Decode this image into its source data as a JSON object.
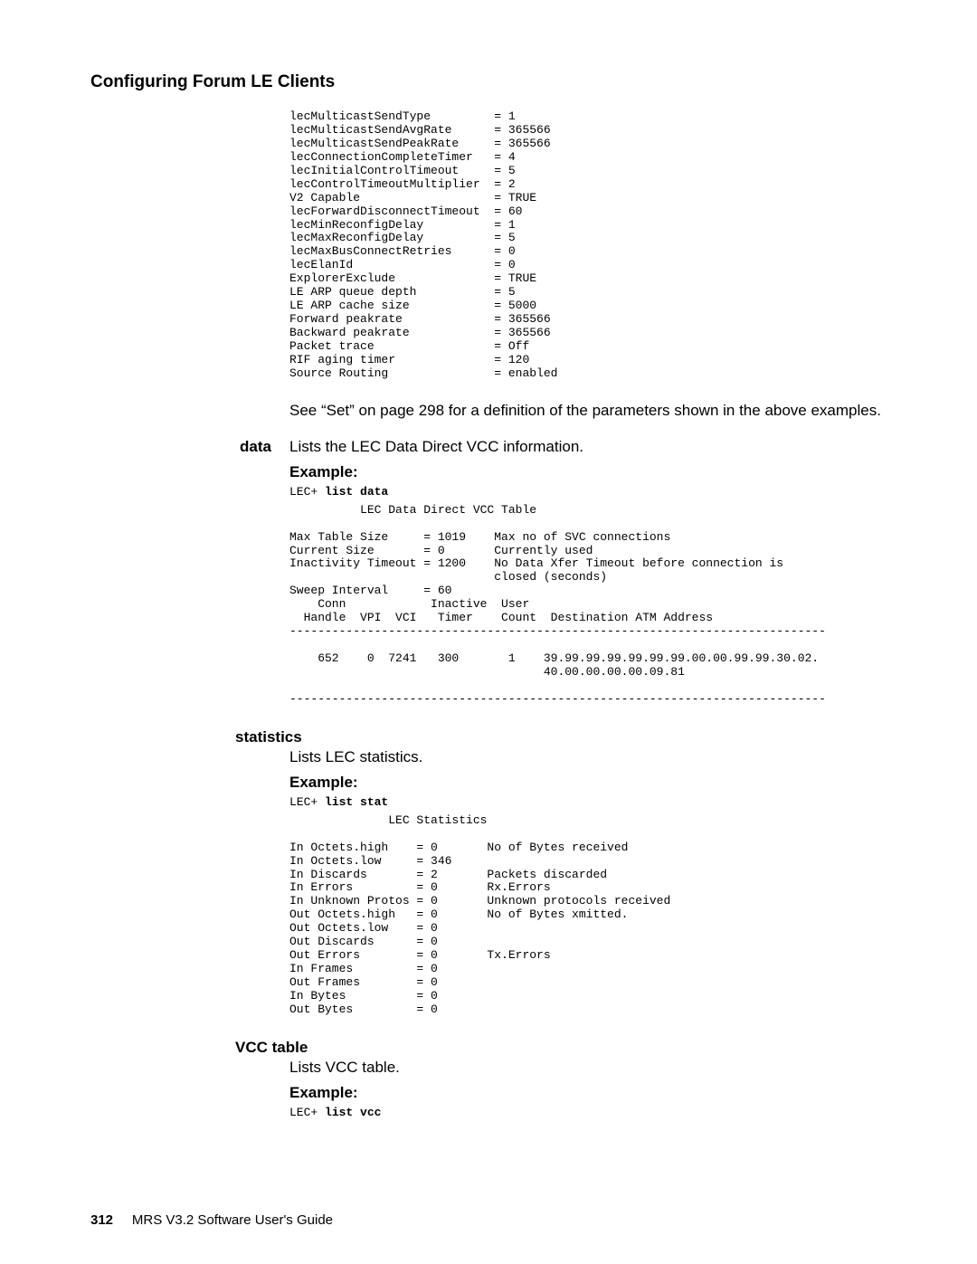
{
  "page": {
    "title": "Configuring Forum LE Clients",
    "page_number": "312",
    "footer_text": "MRS V3.2 Software User's Guide"
  },
  "config_block": "lecMulticastSendType         = 1\nlecMulticastSendAvgRate      = 365566\nlecMulticastSendPeakRate     = 365566\nlecConnectionCompleteTimer   = 4\nlecInitialControlTimeout     = 5\nlecControlTimeoutMultiplier  = 2\nV2 Capable                   = TRUE\nlecForwardDisconnectTimeout  = 60\nlecMinReconfigDelay          = 1\nlecMaxReconfigDelay          = 5\nlecMaxBusConnectRetries      = 0\nlecElanId                    = 0\nExplorerExclude              = TRUE\nLE ARP queue depth           = 5\nLE ARP cache size            = 5000\nForward peakrate             = 365566\nBackward peakrate            = 365566\nPacket trace                 = Off\nRIF aging timer              = 120\nSource Routing               = enabled",
  "see_text": "See “Set” on page 298 for a definition of the parameters shown in the above examples.",
  "data": {
    "term": "data",
    "desc": "Lists the LEC Data Direct VCC information.",
    "example_label": "Example:",
    "prompt": "LEC+ ",
    "cmd": "list data",
    "output": "          LEC Data Direct VCC Table\n\nMax Table Size     = 1019    Max no of SVC connections\nCurrent Size       = 0       Currently used\nInactivity Timeout = 1200    No Data Xfer Timeout before connection is\n                             closed (seconds)\nSweep Interval     = 60\n    Conn            Inactive  User\n  Handle  VPI  VCI   Timer    Count  Destination ATM Address\n----------------------------------------------------------------------------\n\n    652    0  7241   300       1    39.99.99.99.99.99.99.00.00.99.99.30.02.\n                                    40.00.00.00.00.09.81\n\n----------------------------------------------------------------------------"
  },
  "statistics": {
    "head": "statistics",
    "desc": "Lists LEC statistics.",
    "example_label": "Example:",
    "prompt": "LEC+ ",
    "cmd": "list stat",
    "output": "              LEC Statistics\n\nIn Octets.high    = 0       No of Bytes received\nIn Octets.low     = 346\nIn Discards       = 2       Packets discarded\nIn Errors         = 0       Rx.Errors\nIn Unknown Protos = 0       Unknown protocols received\nOut Octets.high   = 0       No of Bytes xmitted.\nOut Octets.low    = 0\nOut Discards      = 0\nOut Errors        = 0       Tx.Errors\nIn Frames         = 0\nOut Frames        = 0\nIn Bytes          = 0\nOut Bytes         = 0"
  },
  "vcctable": {
    "head": "VCC table",
    "desc": "Lists VCC table.",
    "example_label": "Example:",
    "prompt": "LEC+ ",
    "cmd": "list vcc"
  }
}
